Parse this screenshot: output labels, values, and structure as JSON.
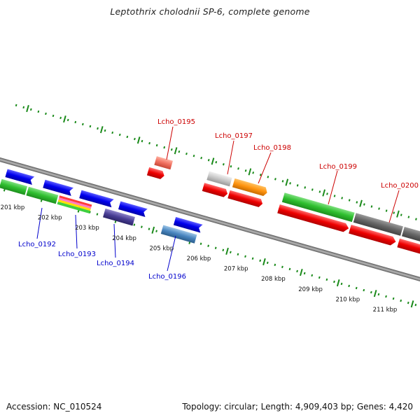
{
  "title": "Leptothrix cholodnii SP-6, complete genome",
  "footer": {
    "accession": "Accession: NC_010524",
    "summary": "Topology: circular; Length: 4,909,403 bp; Genes: 4,420"
  },
  "colors": {
    "backbone": "#8c8c8c",
    "tick": "#1a8a1a",
    "forward_label": "#cc0000",
    "reverse_label": "#0000cc",
    "scale_text": "#111111"
  },
  "scale_labels": [
    "201 kbp",
    "202 kbp",
    "203 kbp",
    "204 kbp",
    "205 kbp",
    "206 kbp",
    "207 kbp",
    "208 kbp",
    "209 kbp",
    "210 kbp",
    "211 kbp"
  ],
  "genes": [
    {
      "id": "Lcho_0192",
      "strand": "reverse",
      "labeled": true
    },
    {
      "id": "Lcho_0193",
      "strand": "reverse",
      "labeled": true
    },
    {
      "id": "Lcho_0194",
      "strand": "reverse",
      "labeled": true
    },
    {
      "id": "Lcho_0195",
      "strand": "forward",
      "labeled": true
    },
    {
      "id": "Lcho_0196",
      "strand": "reverse",
      "labeled": true
    },
    {
      "id": "Lcho_0197",
      "strand": "forward",
      "labeled": true
    },
    {
      "id": "Lcho_0198",
      "strand": "forward",
      "labeled": true
    },
    {
      "id": "Lcho_0199",
      "strand": "forward",
      "labeled": true
    },
    {
      "id": "Lcho_0200",
      "strand": "forward",
      "labeled": true
    }
  ]
}
